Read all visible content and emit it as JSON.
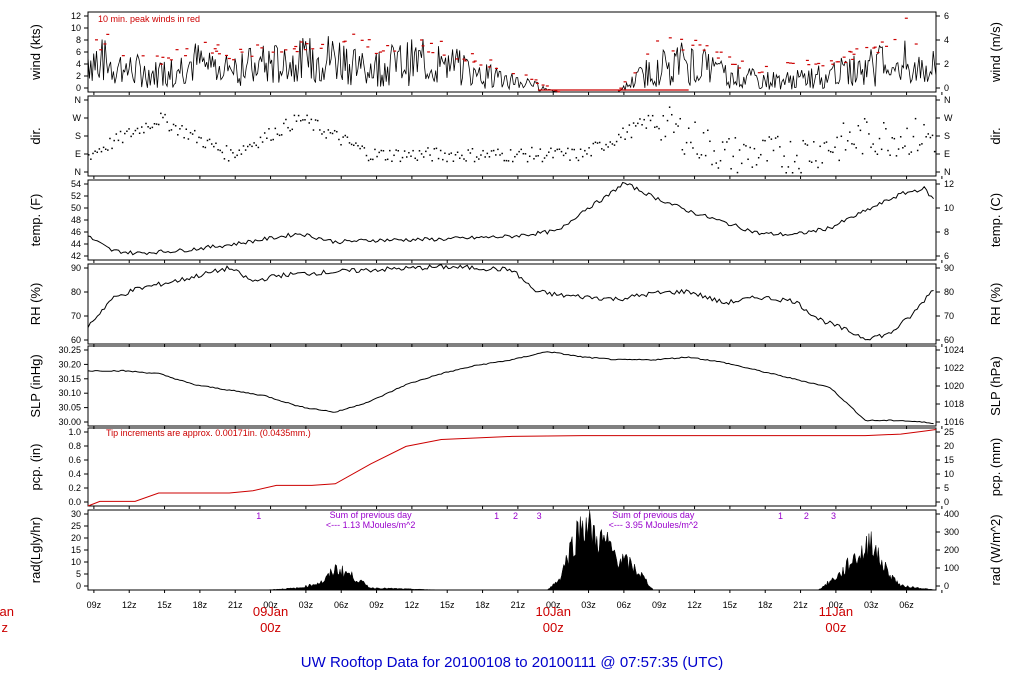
{
  "title": "UW Rooftop Data for 20100108  to  20100111 @ 07:57:35  (UTC)",
  "colors": {
    "title": "#0000cc",
    "red": "#cc0000",
    "purple": "#9900cc",
    "ink": "#000000"
  },
  "x_axis": {
    "hour_ticks": [
      "09z",
      "12z",
      "15z",
      "18z",
      "21z",
      "00z",
      "03z",
      "06z",
      "09z",
      "12z",
      "15z",
      "18z",
      "21z",
      "00z",
      "03z",
      "06z",
      "09z",
      "12z",
      "15z",
      "18z",
      "21z",
      "00z",
      "03z",
      "06z"
    ],
    "date_labels": [
      {
        "date": "09Jan",
        "time": "00z"
      },
      {
        "date": "10Jan",
        "time": "00z"
      },
      {
        "date": "11Jan",
        "time": "00z"
      }
    ],
    "edge_date": "Jan",
    "edge_time": "z"
  },
  "panels": {
    "wind": {
      "ylabel_left": "wind (kts)",
      "ylabel_right": "wind (m/s)",
      "left_ticks": [
        "0",
        "2",
        "4",
        "6",
        "8",
        "10",
        "12"
      ],
      "right_ticks": [
        "0",
        "2",
        "4",
        "6"
      ],
      "note": "10 min. peak winds in red"
    },
    "dir": {
      "ylabel_left": "dir.",
      "ylabel_right": "dir.",
      "left_ticks": [
        "N",
        "E",
        "S",
        "W",
        "N"
      ],
      "right_ticks": [
        "N",
        "E",
        "S",
        "W",
        "N"
      ]
    },
    "temp": {
      "ylabel_left": "temp. (F)",
      "ylabel_right": "temp. (C)",
      "left_ticks": [
        "42",
        "44",
        "46",
        "48",
        "50",
        "52",
        "54"
      ],
      "right_ticks": [
        "6",
        "8",
        "10",
        "12"
      ]
    },
    "rh": {
      "ylabel_left": "RH (%)",
      "ylabel_right": "RH (%)",
      "left_ticks": [
        "60",
        "70",
        "80",
        "90"
      ],
      "right_ticks": [
        "60",
        "70",
        "80",
        "90"
      ]
    },
    "slp": {
      "ylabel_left": "SLP (inHg)",
      "ylabel_right": "SLP (hPa)",
      "left_ticks": [
        "30.00",
        "30.05",
        "30.10",
        "30.15",
        "30.20",
        "30.25"
      ],
      "right_ticks": [
        "1016",
        "1018",
        "1020",
        "1022",
        "1024"
      ]
    },
    "pcp": {
      "ylabel_left": "pcp. (in)",
      "ylabel_right": "pcp. (mm)",
      "left_ticks": [
        "0.0",
        "0.2",
        "0.4",
        "0.6",
        "0.8",
        "1.0"
      ],
      "right_ticks": [
        "0",
        "5",
        "10",
        "15",
        "20",
        "25"
      ],
      "note": "Tip increments are approx. 0.00171in. (0.0435mm.)"
    },
    "rad": {
      "ylabel_left": "rad(Lgly/hr)",
      "ylabel_right": "rad (W/m^2)",
      "left_ticks": [
        "0",
        "5",
        "10",
        "15",
        "20",
        "25",
        "30"
      ],
      "right_ticks": [
        "0",
        "100",
        "200",
        "300",
        "400"
      ],
      "notes": [
        {
          "line1": "Sum of previous day",
          "line2": "<--- 1.13 MJoules/m^2"
        },
        {
          "line1": "Sum of previous day",
          "line2": "<--- 3.95 MJoules/m^2"
        }
      ],
      "markers": [
        "1",
        "1",
        "2",
        "3",
        "1",
        "2",
        "3"
      ]
    }
  },
  "chart_data": [
    {
      "type": "line",
      "title": "wind (kts)",
      "ylabel": "wind (kts)",
      "ylabel_right": "wind (m/s)",
      "ylim": [
        0,
        13.5
      ],
      "x_hours": [
        0,
        72
      ],
      "series": [
        {
          "name": "10 min. mean wind (kts)",
          "x": [
            0,
            3,
            6,
            9,
            12,
            18,
            21,
            24,
            27,
            30,
            33,
            36,
            40,
            45,
            48,
            51,
            54,
            57,
            60,
            63,
            66,
            69,
            72
          ],
          "values": [
            6,
            4,
            3,
            5,
            4,
            5,
            6,
            4,
            5,
            5,
            3,
            2,
            0,
            0,
            4,
            5,
            3,
            2,
            2,
            3,
            4,
            5,
            4
          ]
        },
        {
          "name": "10 min. peak winds",
          "color": "red",
          "x": [
            0,
            3,
            6,
            9,
            12,
            18,
            21,
            24,
            27,
            30,
            33,
            36,
            40,
            45,
            48,
            51,
            54,
            57,
            60,
            63,
            66,
            69,
            72
          ],
          "values": [
            10,
            8,
            6,
            8,
            7,
            8,
            10,
            8,
            9,
            8,
            6,
            4,
            0,
            0,
            8,
            9,
            6,
            4,
            5,
            6,
            7,
            12,
            8
          ]
        }
      ]
    },
    {
      "type": "scatter",
      "title": "dir.",
      "ylabel": "dir.",
      "ylim": [
        "N",
        "N"
      ],
      "categories": [
        "N",
        "E",
        "S",
        "W",
        "N"
      ],
      "x": [
        0,
        6,
        12,
        18,
        24,
        30,
        36,
        42,
        48,
        54,
        60,
        66,
        72
      ],
      "values": [
        "E",
        "W",
        "E",
        "W",
        "E",
        "E",
        "E",
        "E",
        "W",
        "E",
        "E",
        "S",
        "S"
      ]
    },
    {
      "type": "line",
      "title": "temp. (F)",
      "ylabel": "temp. (F)",
      "ylabel_right": "temp. (C)",
      "ylim": [
        41.3,
        55.5
      ],
      "x": [
        0,
        2,
        4,
        8,
        12,
        15,
        18,
        21,
        24,
        30,
        36,
        40,
        42,
        44,
        45.5,
        48,
        51,
        54,
        57,
        60,
        63,
        66,
        69,
        71,
        72
      ],
      "values": [
        45.5,
        43,
        42.5,
        43,
        44,
        45,
        46,
        44.5,
        44.8,
        45,
        45.5,
        46.5,
        50,
        52.5,
        55,
        52.5,
        50,
        48,
        46,
        45.8,
        47,
        50,
        53,
        54,
        51.5
      ],
      "series": [
        {
          "name": "temp (F)",
          "values": [
            45.5,
            43,
            42.5,
            43,
            44,
            45,
            46,
            44.5,
            44.8,
            45,
            45.5,
            46.5,
            50,
            52.5,
            55,
            52.5,
            50,
            48,
            46,
            45.8,
            47,
            50,
            53,
            54,
            51.5
          ]
        }
      ]
    },
    {
      "type": "line",
      "title": "RH (%)",
      "ylabel": "RH (%)",
      "ylim": [
        57,
        98
      ],
      "x": [
        0,
        2,
        4,
        8,
        12,
        14,
        16,
        18,
        24,
        30,
        33,
        36,
        38,
        40,
        45,
        48,
        51,
        54,
        57,
        60,
        62,
        64,
        66,
        68,
        70,
        72
      ],
      "values": [
        66,
        80,
        85,
        90,
        96,
        89,
        92,
        93,
        95,
        96.5,
        96,
        95,
        84,
        82,
        80,
        83,
        84,
        78,
        81,
        79,
        70,
        65,
        60,
        62,
        72,
        87
      ]
    },
    {
      "type": "line",
      "title": "SLP (inHg)",
      "ylabel": "SLP (inHg)",
      "ylabel_right": "SLP (hPa)",
      "ylim": [
        29.98,
        30.27
      ],
      "x": [
        0,
        3,
        6,
        9,
        12,
        15,
        18,
        21,
        24,
        27,
        30,
        33,
        36,
        39,
        42,
        45,
        48,
        51,
        54,
        57,
        60,
        63,
        66,
        69,
        72
      ],
      "values": [
        30.18,
        30.18,
        30.17,
        30.13,
        30.11,
        30.09,
        30.05,
        30.03,
        30.07,
        30.13,
        30.17,
        30.2,
        30.22,
        30.25,
        30.23,
        30.22,
        30.22,
        30.23,
        30.21,
        30.18,
        30.15,
        30.12,
        30.0,
        30.0,
        29.99
      ]
    },
    {
      "type": "line",
      "title": "pcp. (in)",
      "ylabel": "pcp. (in)",
      "ylabel_right": "pcp. (mm)",
      "ylim": [
        0,
        1.02
      ],
      "x": [
        0,
        1,
        4,
        6,
        12,
        14,
        16,
        19,
        21,
        24,
        27,
        30,
        36,
        42,
        48,
        54,
        60,
        66,
        69,
        71,
        72
      ],
      "values": [
        0,
        0.06,
        0.06,
        0.17,
        0.17,
        0.2,
        0.27,
        0.27,
        0.29,
        0.55,
        0.78,
        0.87,
        0.91,
        0.92,
        0.92,
        0.92,
        0.92,
        0.92,
        0.94,
        0.98,
        1.0
      ]
    },
    {
      "type": "area",
      "title": "rad(Lgly/hr)",
      "ylabel": "rad(Lgly/hr)",
      "ylabel_right": "rad (W/m^2)",
      "ylim": [
        0,
        34
      ],
      "x": [
        0,
        15,
        18,
        20,
        21,
        22,
        24,
        30,
        39,
        40,
        41,
        42,
        42.5,
        43,
        44,
        45,
        46,
        47,
        48,
        55,
        62,
        64,
        65,
        66,
        66.5,
        67,
        68,
        69,
        72
      ],
      "values": [
        0,
        0,
        1,
        4,
        10,
        8,
        1,
        0,
        0,
        5,
        20,
        32,
        30,
        25,
        22,
        15,
        12,
        7,
        0,
        0,
        0,
        8,
        15,
        18,
        26,
        16,
        8,
        2,
        0
      ]
    }
  ]
}
